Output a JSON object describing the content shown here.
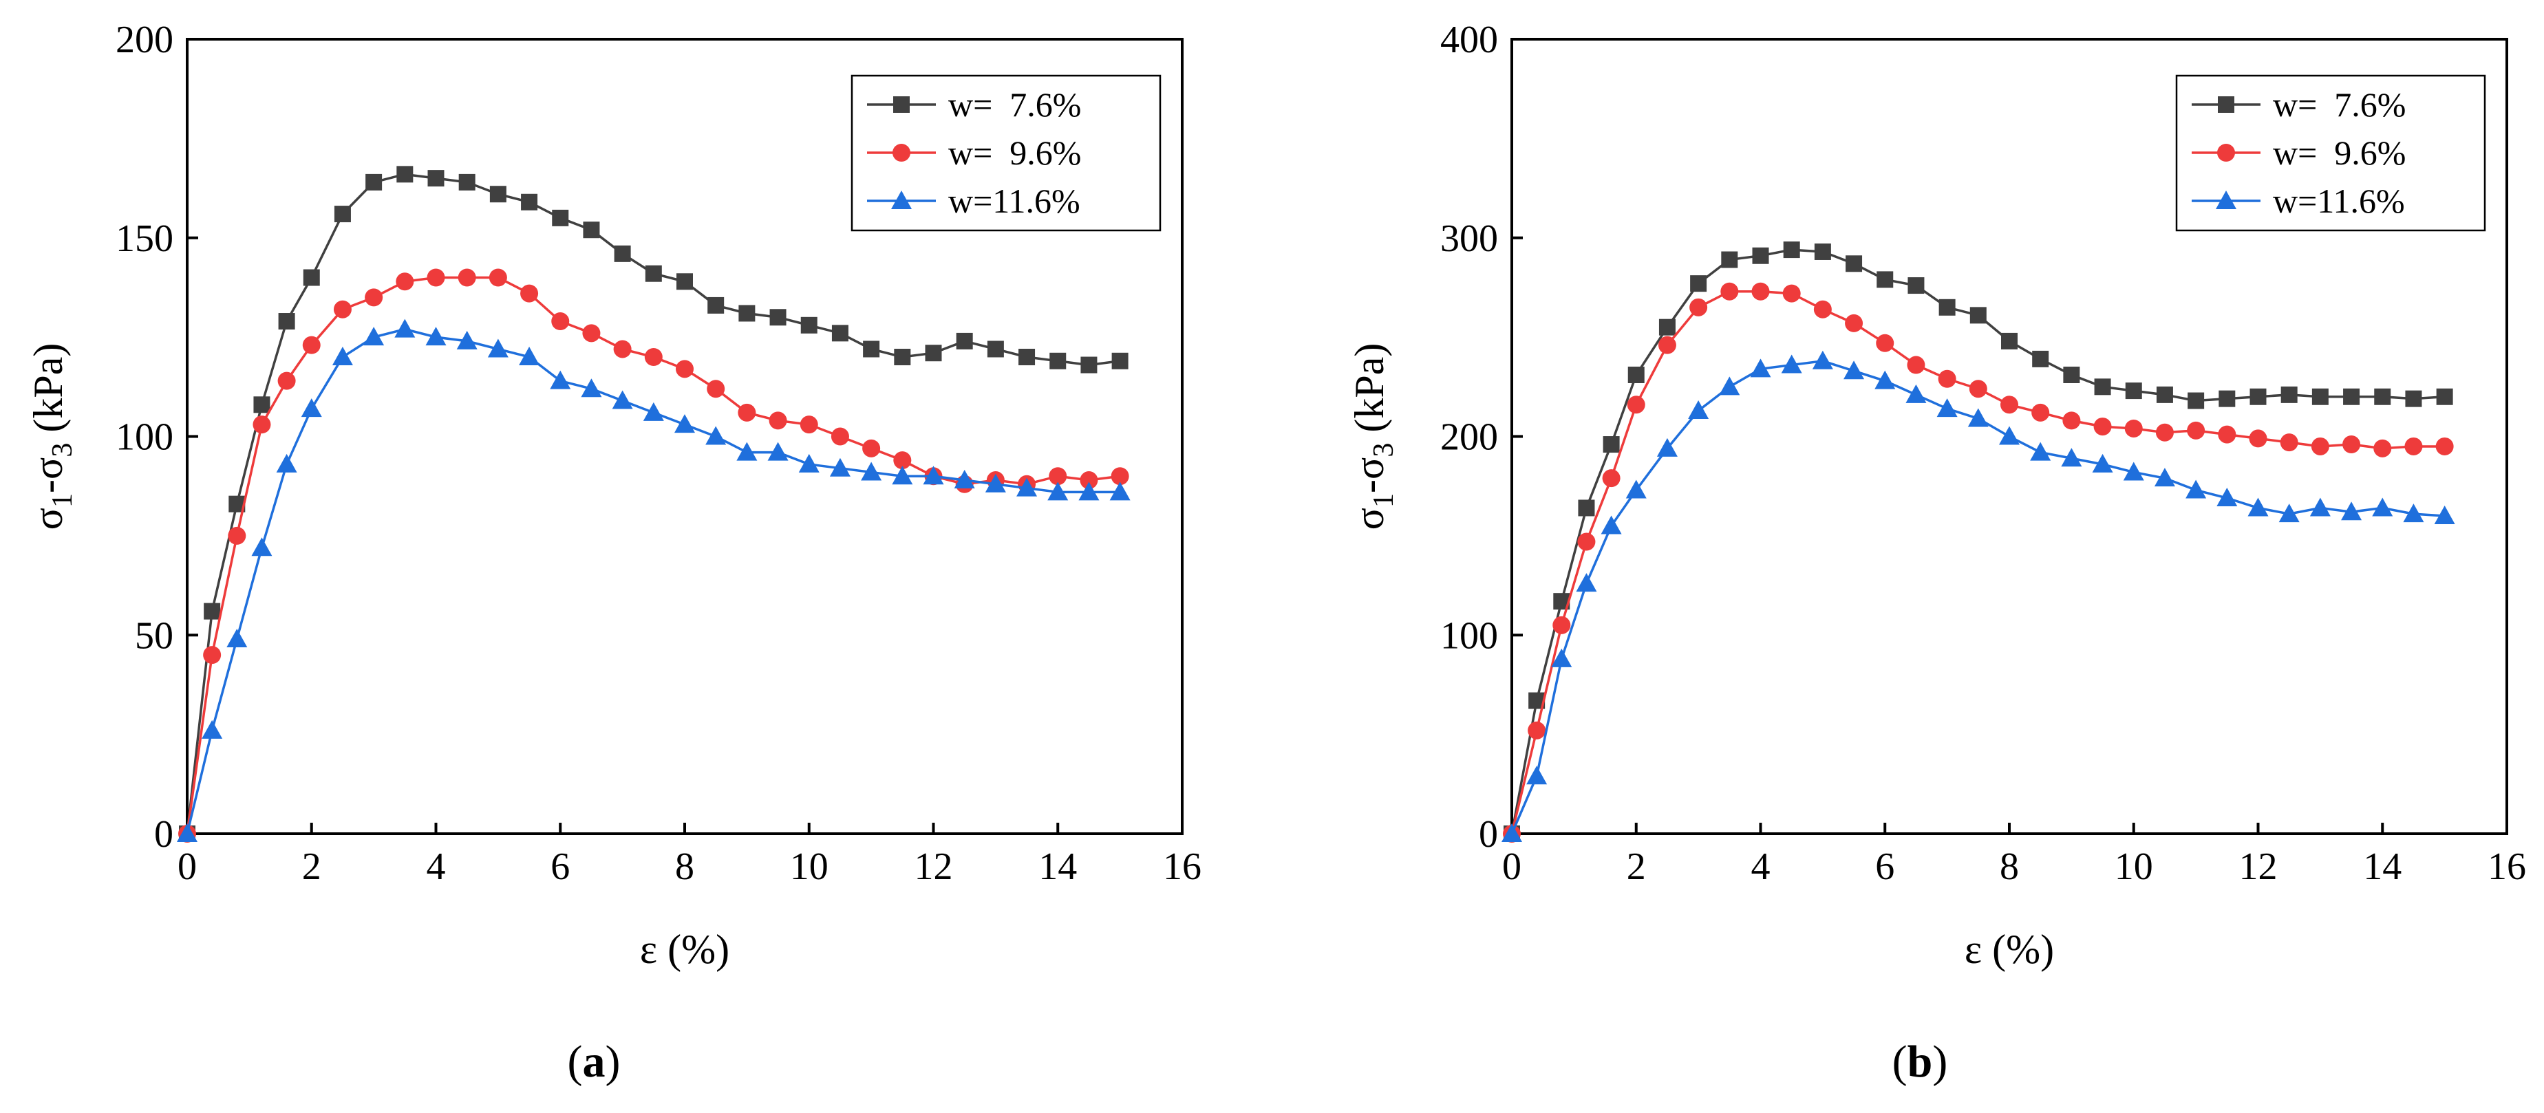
{
  "chart_data": [
    {
      "type": "line",
      "panel_label": "a",
      "panel_label_full": "(a)",
      "xlabel": "ε (%)",
      "ylabel_main": "σ",
      "ylabel_sub1": "1",
      "ylabel_mid": "-σ",
      "ylabel_sub2": "3",
      "ylabel_unit": " (kPa)",
      "xlim": [
        0,
        16
      ],
      "ylim": [
        0,
        200
      ],
      "xticks": [
        0,
        2,
        4,
        6,
        8,
        10,
        12,
        14,
        16
      ],
      "yticks": [
        0,
        50,
        100,
        150,
        200
      ],
      "legend_position": "top-right",
      "series": [
        {
          "name": "w=  7.6%",
          "color": "#404040",
          "marker": "square",
          "x": [
            0,
            0.4,
            0.8,
            1.2,
            1.6,
            2.0,
            2.5,
            3.0,
            3.5,
            4.0,
            4.5,
            5.0,
            5.5,
            6.0,
            6.5,
            7.0,
            7.5,
            8.0,
            8.5,
            9.0,
            9.5,
            10.0,
            10.5,
            11.0,
            11.5,
            12.0,
            12.5,
            13.0,
            13.5,
            14.0,
            14.5,
            15.0
          ],
          "y": [
            0,
            56,
            83,
            108,
            129,
            140,
            156,
            164,
            166,
            165,
            164,
            161,
            159,
            155,
            152,
            146,
            141,
            139,
            133,
            131,
            130,
            128,
            126,
            122,
            120,
            121,
            124,
            122,
            120,
            119,
            118,
            119
          ]
        },
        {
          "name": "w=  9.6%",
          "color": "#ee3b3b",
          "marker": "circle",
          "x": [
            0,
            0.4,
            0.8,
            1.2,
            1.6,
            2.0,
            2.5,
            3.0,
            3.5,
            4.0,
            4.5,
            5.0,
            5.5,
            6.0,
            6.5,
            7.0,
            7.5,
            8.0,
            8.5,
            9.0,
            9.5,
            10.0,
            10.5,
            11.0,
            11.5,
            12.0,
            12.5,
            13.0,
            13.5,
            14.0,
            14.5,
            15.0
          ],
          "y": [
            0,
            45,
            75,
            103,
            114,
            123,
            132,
            135,
            139,
            140,
            140,
            140,
            136,
            129,
            126,
            122,
            120,
            117,
            112,
            106,
            104,
            103,
            100,
            97,
            94,
            90,
            88,
            89,
            88,
            90,
            89,
            90
          ]
        },
        {
          "name": "w=11.6%",
          "color": "#1f6fdc",
          "marker": "triangle",
          "x": [
            0,
            0.4,
            0.8,
            1.2,
            1.6,
            2.0,
            2.5,
            3.0,
            3.5,
            4.0,
            4.5,
            5.0,
            5.5,
            6.0,
            6.5,
            7.0,
            7.5,
            8.0,
            8.5,
            9.0,
            9.5,
            10.0,
            10.5,
            11.0,
            11.5,
            12.0,
            12.5,
            13.0,
            13.5,
            14.0,
            14.5,
            15.0
          ],
          "y": [
            0,
            26,
            49,
            72,
            93,
            107,
            120,
            125,
            127,
            125,
            124,
            122,
            120,
            114,
            112,
            109,
            106,
            103,
            100,
            96,
            96,
            93,
            92,
            91,
            90,
            90,
            89,
            88,
            87,
            86,
            86,
            86
          ]
        }
      ]
    },
    {
      "type": "line",
      "panel_label": "b",
      "panel_label_full": "(b)",
      "xlabel": "ε (%)",
      "ylabel_main": "σ",
      "ylabel_sub1": "1",
      "ylabel_mid": "-σ",
      "ylabel_sub2": "3",
      "ylabel_unit": " (kPa)",
      "xlim": [
        0,
        16
      ],
      "ylim": [
        0,
        400
      ],
      "xticks": [
        0,
        2,
        4,
        6,
        8,
        10,
        12,
        14,
        16
      ],
      "yticks": [
        0,
        100,
        200,
        300,
        400
      ],
      "legend_position": "top-right",
      "series": [
        {
          "name": "w=  7.6%",
          "color": "#404040",
          "marker": "square",
          "x": [
            0,
            0.4,
            0.8,
            1.2,
            1.6,
            2.0,
            2.5,
            3.0,
            3.5,
            4.0,
            4.5,
            5.0,
            5.5,
            6.0,
            6.5,
            7.0,
            7.5,
            8.0,
            8.5,
            9.0,
            9.5,
            10.0,
            10.5,
            11.0,
            11.5,
            12.0,
            12.5,
            13.0,
            13.5,
            14.0,
            14.5,
            15.0
          ],
          "y": [
            0,
            67,
            117,
            164,
            196,
            231,
            255,
            277,
            289,
            291,
            294,
            293,
            287,
            279,
            276,
            265,
            261,
            248,
            239,
            231,
            225,
            223,
            221,
            218,
            219,
            220,
            221,
            220,
            220,
            220,
            219,
            220
          ]
        },
        {
          "name": "w=  9.6%",
          "color": "#ee3b3b",
          "marker": "circle",
          "x": [
            0,
            0.4,
            0.8,
            1.2,
            1.6,
            2.0,
            2.5,
            3.0,
            3.5,
            4.0,
            4.5,
            5.0,
            5.5,
            6.0,
            6.5,
            7.0,
            7.5,
            8.0,
            8.5,
            9.0,
            9.5,
            10.0,
            10.5,
            11.0,
            11.5,
            12.0,
            12.5,
            13.0,
            13.5,
            14.0,
            14.5,
            15.0
          ],
          "y": [
            0,
            52,
            105,
            147,
            179,
            216,
            246,
            265,
            273,
            273,
            272,
            264,
            257,
            247,
            236,
            229,
            224,
            216,
            212,
            208,
            205,
            204,
            202,
            203,
            201,
            199,
            197,
            195,
            196,
            194,
            195,
            195
          ]
        },
        {
          "name": "w=11.6%",
          "color": "#1f6fdc",
          "marker": "triangle",
          "x": [
            0,
            0.4,
            0.8,
            1.2,
            1.6,
            2.0,
            2.5,
            3.0,
            3.5,
            4.0,
            4.5,
            5.0,
            5.5,
            6.0,
            6.5,
            7.0,
            7.5,
            8.0,
            8.5,
            9.0,
            9.5,
            10.0,
            10.5,
            11.0,
            11.5,
            12.0,
            12.5,
            13.0,
            13.5,
            14.0,
            14.5,
            15.0
          ],
          "y": [
            0,
            29,
            88,
            126,
            155,
            173,
            194,
            213,
            225,
            234,
            236,
            238,
            233,
            228,
            221,
            214,
            209,
            200,
            192,
            189,
            186,
            182,
            179,
            173,
            169,
            164,
            161,
            164,
            162,
            164,
            161,
            160
          ]
        }
      ]
    }
  ]
}
